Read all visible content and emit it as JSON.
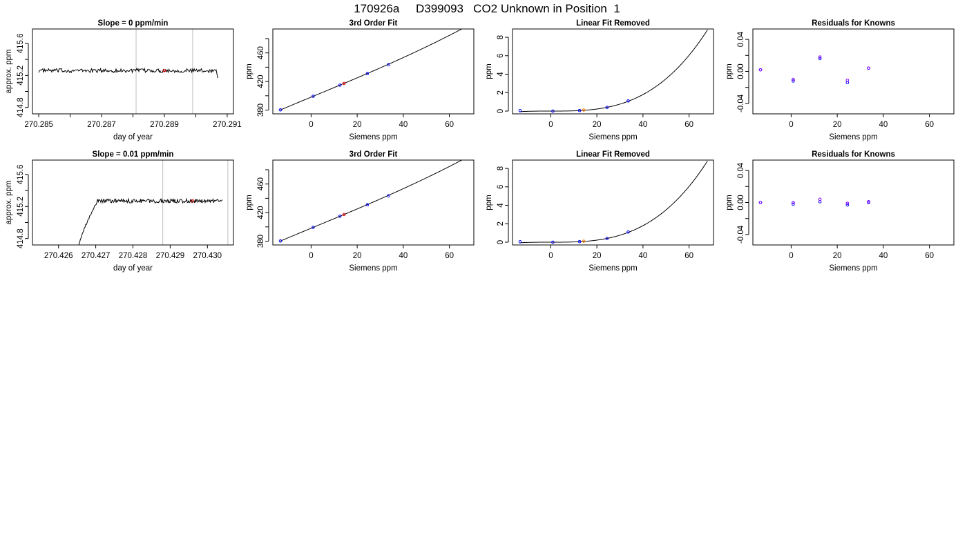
{
  "figure": {
    "title": "170926a     D399093   CO2 Unknown in Position  1",
    "accent_colors": {
      "line": "#000000",
      "known": "#0000ff",
      "unknown": "#ff0000",
      "residual": "#8000ff",
      "frame": "#000000",
      "marker_line": "#bebebe"
    }
  },
  "chart_data": [
    {
      "id": "r1-trace",
      "type": "line",
      "title": "Slope =  0  ppm/min",
      "xlabel": "day of year",
      "ylabel": "approx. ppm",
      "xlim": [
        270.2848,
        270.2912
      ],
      "ylim": [
        414.72,
        415.78
      ],
      "xticks": [
        270.285,
        270.286,
        270.287,
        270.288,
        270.289,
        270.29,
        270.291
      ],
      "xtick_labels": [
        "270.285",
        "",
        "270.287",
        "",
        "270.289",
        "",
        "270.291"
      ],
      "yticks": [
        414.8,
        415.0,
        415.2,
        415.4,
        415.6
      ],
      "ytick_labels": [
        "414.8",
        "",
        "415.2",
        "",
        "415.6"
      ],
      "vlines": [
        270.2881,
        270.2899
      ],
      "series": [
        {
          "trace": {
            "x_start": 270.285,
            "x_end": 270.2907,
            "mean": 415.26,
            "noise": 0.025,
            "features": [
              {
                "type": "drop",
                "start": 270.29065,
                "end": 270.29085,
                "to": 414.6
              }
            ]
          },
          "color": "#000000"
        }
      ],
      "points": [
        {
          "x": 270.289,
          "y": 415.26,
          "color": "#ff0000"
        }
      ]
    },
    {
      "id": "r1-fit",
      "type": "scatter",
      "title": "3rd Order Fit",
      "xlabel": "Siemens ppm",
      "ylabel": "ppm",
      "xlim": [
        -16.6,
        70.6
      ],
      "ylim": [
        374.7,
        493.5
      ],
      "xticks": [
        0,
        20,
        40,
        60
      ],
      "xtick_labels": [
        "0",
        "20",
        "40",
        "60"
      ],
      "yticks": [
        380,
        400,
        420,
        440,
        460,
        480
      ],
      "ytick_labels": [
        "380",
        "",
        "420",
        "",
        "460",
        ""
      ],
      "curve": {
        "x_range": [
          -13.5,
          67.5
        ],
        "coefficients": [
          398.1,
          1.34,
          0.0,
          2.8e-05
        ]
      },
      "series": [
        {
          "name": "known",
          "color": "#0000ff",
          "points": [
            [
              -13.3,
              380.3
            ],
            [
              0.9,
              399.3
            ],
            [
              12.5,
              414.9
            ],
            [
              24.4,
              431.0
            ],
            [
              33.6,
              443.5
            ]
          ]
        },
        {
          "name": "unknown",
          "color": "#ff0000",
          "points": [
            [
              14.3,
              417.3
            ]
          ]
        }
      ]
    },
    {
      "id": "r1-lin",
      "type": "scatter",
      "title": "Linear Fit Removed",
      "xlabel": "Siemens ppm",
      "ylabel": "ppm",
      "xlim": [
        -16.6,
        70.6
      ],
      "ylim": [
        -0.3,
        8.9
      ],
      "xticks": [
        0,
        20,
        40,
        60
      ],
      "xtick_labels": [
        "0",
        "20",
        "40",
        "60"
      ],
      "yticks": [
        0,
        2,
        4,
        6,
        8
      ],
      "ytick_labels": [
        "0",
        "2",
        "4",
        "6",
        "8"
      ],
      "curve": {
        "x_range": [
          -13.5,
          68
        ],
        "coefficients": [
          0,
          0,
          0,
          2.8e-05
        ]
      },
      "series": [
        {
          "name": "known",
          "color": "#0000ff",
          "points": [
            [
              -13.3,
              0.05
            ],
            [
              0.9,
              0.0
            ],
            [
              12.5,
              0.06
            ],
            [
              24.4,
              0.4
            ],
            [
              33.6,
              1.1
            ]
          ]
        },
        {
          "name": "unknown",
          "color": "#ff8000",
          "points": [
            [
              14.3,
              0.11
            ]
          ]
        }
      ]
    },
    {
      "id": "r1-res",
      "type": "scatter",
      "title": "Residuals for Knowns",
      "xlabel": "Siemens ppm",
      "ylabel": "ppm",
      "xlim": [
        -16.6,
        70.6
      ],
      "ylim": [
        -0.053,
        0.053
      ],
      "xticks": [
        0,
        20,
        40,
        60
      ],
      "xtick_labels": [
        "0",
        "20",
        "40",
        "60"
      ],
      "yticks": [
        -0.04,
        -0.02,
        0,
        0.02,
        0.04
      ],
      "ytick_labels": [
        "-0.04",
        "",
        "0.00",
        "",
        "0.04"
      ],
      "series": [
        {
          "name": "residual",
          "color": "#0000ff",
          "points": [
            [
              -13.3,
              0.002
            ],
            [
              0.9,
              -0.012
            ],
            [
              12.5,
              0.016
            ],
            [
              24.4,
              -0.014
            ],
            [
              33.6,
              0.004
            ]
          ]
        },
        {
          "name": "residual2",
          "color": "#8000ff",
          "points": [
            [
              -13.3,
              0.002
            ],
            [
              0.9,
              -0.01
            ],
            [
              12.5,
              0.018
            ],
            [
              24.4,
              -0.011
            ],
            [
              33.6,
              0.004
            ]
          ]
        }
      ]
    },
    {
      "id": "r2-trace",
      "type": "line",
      "title": "Slope =  0.01  ppm/min",
      "xlabel": "day of year",
      "ylabel": "approx. ppm",
      "xlim": [
        270.4253,
        270.4307
      ],
      "ylim": [
        414.72,
        415.78
      ],
      "xticks": [
        270.426,
        270.427,
        270.428,
        270.429,
        270.43
      ],
      "xtick_labels": [
        "270.426",
        "270.427",
        "270.428",
        "270.429",
        "270.430"
      ],
      "yticks": [
        414.8,
        415.0,
        415.2,
        415.4,
        415.6
      ],
      "ytick_labels": [
        "414.8",
        "",
        "415.2",
        "",
        "415.6"
      ],
      "vlines": [
        270.4288,
        270.43055
      ],
      "series": [
        {
          "trace": {
            "x_start": 270.4265,
            "x_end": 270.4304,
            "mean": 415.27,
            "noise": 0.025,
            "features": [
              {
                "type": "rise",
                "start": 270.4265,
                "end": 270.42705,
                "from": 414.6
              }
            ]
          },
          "color": "#000000"
        }
      ],
      "points": [
        {
          "x": 270.4296,
          "y": 415.27,
          "color": "#ff0000"
        }
      ]
    },
    {
      "id": "r2-fit",
      "type": "scatter",
      "title": "3rd Order Fit",
      "xlabel": "Siemens ppm",
      "ylabel": "ppm",
      "xlim": [
        -16.6,
        70.6
      ],
      "ylim": [
        374.7,
        493.5
      ],
      "xticks": [
        0,
        20,
        40,
        60
      ],
      "xtick_labels": [
        "0",
        "20",
        "40",
        "60"
      ],
      "yticks": [
        380,
        400,
        420,
        440,
        460,
        480
      ],
      "ytick_labels": [
        "380",
        "",
        "420",
        "",
        "460",
        ""
      ],
      "curve": {
        "x_range": [
          -13.5,
          67.5
        ],
        "coefficients": [
          398.1,
          1.34,
          0.0,
          2.8e-05
        ]
      },
      "series": [
        {
          "name": "known",
          "color": "#0000ff",
          "points": [
            [
              -13.3,
              380.3
            ],
            [
              0.9,
              399.3
            ],
            [
              12.5,
              414.9
            ],
            [
              24.4,
              431.0
            ],
            [
              33.6,
              443.5
            ]
          ]
        },
        {
          "name": "unknown",
          "color": "#ff0000",
          "points": [
            [
              14.3,
              417.3
            ]
          ]
        }
      ]
    },
    {
      "id": "r2-lin",
      "type": "scatter",
      "title": "Linear Fit Removed",
      "xlabel": "Siemens ppm",
      "ylabel": "ppm",
      "xlim": [
        -16.6,
        70.6
      ],
      "ylim": [
        -0.3,
        8.9
      ],
      "xticks": [
        0,
        20,
        40,
        60
      ],
      "xtick_labels": [
        "0",
        "20",
        "40",
        "60"
      ],
      "yticks": [
        0,
        2,
        4,
        6,
        8
      ],
      "ytick_labels": [
        "0",
        "2",
        "4",
        "6",
        "8"
      ],
      "curve": {
        "x_range": [
          -13.5,
          68
        ],
        "coefficients": [
          0,
          0,
          0,
          2.8e-05
        ]
      },
      "series": [
        {
          "name": "known",
          "color": "#0000ff",
          "points": [
            [
              -13.3,
              0.05
            ],
            [
              0.9,
              0.0
            ],
            [
              12.5,
              0.06
            ],
            [
              24.4,
              0.4
            ],
            [
              33.6,
              1.1
            ]
          ]
        },
        {
          "name": "unknown",
          "color": "#ff8000",
          "points": [
            [
              14.3,
              0.11
            ]
          ]
        }
      ]
    },
    {
      "id": "r2-res",
      "type": "scatter",
      "title": "Residuals for Knowns",
      "xlabel": "Siemens ppm",
      "ylabel": "ppm",
      "xlim": [
        -16.6,
        70.6
      ],
      "ylim": [
        -0.053,
        0.053
      ],
      "xticks": [
        0,
        20,
        40,
        60
      ],
      "xtick_labels": [
        "0",
        "20",
        "40",
        "60"
      ],
      "yticks": [
        -0.04,
        -0.02,
        0,
        0.02,
        0.04
      ],
      "ytick_labels": [
        "-0.04",
        "",
        "0.00",
        "",
        "0.04"
      ],
      "series": [
        {
          "name": "residual",
          "color": "#0000ff",
          "points": [
            [
              -13.3,
              0.0
            ],
            [
              0.9,
              -0.002
            ],
            [
              12.5,
              0.001
            ],
            [
              24.4,
              -0.003
            ],
            [
              33.6,
              0.0
            ]
          ]
        },
        {
          "name": "residual2",
          "color": "#8000ff",
          "points": [
            [
              -13.3,
              0.0
            ],
            [
              0.9,
              0.0
            ],
            [
              12.5,
              0.004
            ],
            [
              24.4,
              -0.001
            ],
            [
              33.6,
              0.001
            ]
          ]
        }
      ]
    }
  ]
}
